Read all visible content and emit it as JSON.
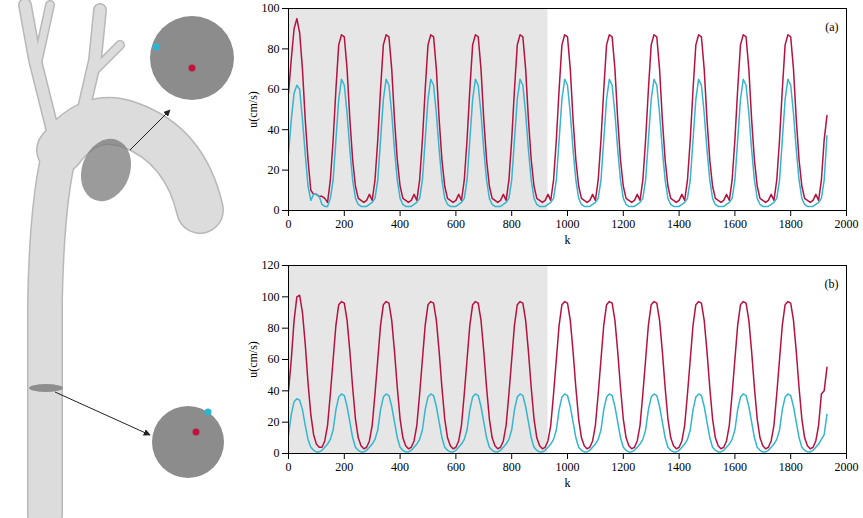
{
  "chart_data": [
    {
      "type": "line",
      "label": "(a)",
      "x_label": "k",
      "y_label": "u(cm/s)",
      "xlim": [
        0,
        2000
      ],
      "xticks": [
        0,
        200,
        400,
        600,
        800,
        1000,
        1200,
        1400,
        1600,
        1800,
        2000
      ],
      "ylim": [
        0,
        100
      ],
      "yticks": [
        0,
        20,
        40,
        60,
        80,
        100
      ],
      "highlight": [
        0,
        930
      ],
      "x": [
        0,
        10,
        20,
        30,
        40,
        50,
        60,
        70,
        80,
        90,
        100,
        110,
        120,
        130,
        140,
        150,
        160,
        170,
        180,
        190,
        200,
        210,
        220,
        230,
        240,
        250,
        260,
        270,
        280,
        290,
        300,
        310,
        320,
        330,
        340,
        350,
        360,
        370,
        380,
        390,
        400,
        410,
        420,
        430,
        440,
        450,
        460,
        470,
        480,
        490,
        500,
        510,
        520,
        530,
        540,
        550,
        560,
        570,
        580,
        590,
        600,
        610,
        620,
        630,
        640,
        650,
        660,
        670,
        680,
        690,
        700,
        710,
        720,
        730,
        740,
        750,
        760,
        770,
        780,
        790,
        800,
        810,
        820,
        830,
        840,
        850,
        860,
        870,
        880,
        890,
        900,
        910,
        920,
        930,
        940,
        950,
        960,
        970,
        980,
        990,
        1000,
        1010,
        1020,
        1030,
        1040,
        1050,
        1060,
        1070,
        1080,
        1090,
        1100,
        1110,
        1120,
        1130,
        1140,
        1150,
        1160,
        1170,
        1180,
        1190,
        1200,
        1210,
        1220,
        1230,
        1240,
        1250,
        1260,
        1270,
        1280,
        1290,
        1300,
        1310,
        1320,
        1330,
        1340,
        1350,
        1360,
        1370,
        1380,
        1390,
        1400,
        1410,
        1420,
        1430,
        1440,
        1450,
        1460,
        1470,
        1480,
        1490,
        1500,
        1510,
        1520,
        1530,
        1540,
        1550,
        1560,
        1570,
        1580,
        1590,
        1600,
        1610,
        1620,
        1630,
        1640,
        1650,
        1660,
        1670,
        1680,
        1690,
        1700,
        1710,
        1720,
        1730,
        1740,
        1750,
        1760,
        1770,
        1780,
        1790,
        1800,
        1810,
        1820,
        1830,
        1840,
        1850,
        1860,
        1870,
        1880,
        1890,
        1900,
        1910,
        1920,
        1930
      ],
      "series": [
        {
          "color": "#b5123f",
          "values": [
            58,
            75,
            90,
            95,
            88,
            70,
            45,
            25,
            10,
            8,
            8,
            7,
            7,
            6,
            4,
            15,
            35,
            60,
            82,
            87,
            86,
            70,
            45,
            25,
            12,
            6,
            5,
            4,
            5,
            8,
            5,
            15,
            35,
            60,
            82,
            87,
            86,
            70,
            45,
            25,
            12,
            6,
            5,
            4,
            5,
            8,
            5,
            15,
            35,
            60,
            82,
            87,
            86,
            70,
            45,
            25,
            12,
            6,
            5,
            4,
            5,
            8,
            5,
            15,
            35,
            60,
            82,
            87,
            86,
            70,
            45,
            25,
            12,
            6,
            5,
            4,
            5,
            8,
            5,
            15,
            35,
            60,
            82,
            87,
            86,
            70,
            45,
            25,
            12,
            6,
            5,
            4,
            5,
            8,
            5,
            15,
            35,
            60,
            82,
            87,
            86,
            70,
            45,
            25,
            12,
            6,
            5,
            4,
            5,
            8,
            5,
            15,
            35,
            60,
            82,
            87,
            86,
            70,
            45,
            25,
            12,
            6,
            5,
            4,
            5,
            8,
            5,
            15,
            35,
            60,
            82,
            87,
            86,
            70,
            45,
            25,
            12,
            6,
            5,
            4,
            5,
            8,
            5,
            15,
            35,
            60,
            82,
            87,
            86,
            70,
            45,
            25,
            12,
            6,
            5,
            4,
            5,
            8,
            5,
            15,
            35,
            60,
            82,
            87,
            86,
            70,
            45,
            25,
            12,
            6,
            5,
            4,
            5,
            8,
            5,
            15,
            35,
            60,
            82,
            87,
            86,
            70,
            45,
            25,
            12,
            6,
            5,
            4,
            5,
            8,
            5,
            15,
            35,
            47
          ]
        },
        {
          "color": "#35b5d0",
          "values": [
            28,
            45,
            58,
            62,
            60,
            45,
            28,
            12,
            5,
            8,
            8,
            7,
            3,
            2,
            2,
            6,
            15,
            35,
            55,
            65,
            62,
            48,
            30,
            15,
            6,
            3,
            2,
            2,
            2,
            3,
            4,
            6,
            15,
            35,
            55,
            65,
            62,
            48,
            30,
            15,
            6,
            3,
            2,
            2,
            2,
            3,
            4,
            6,
            15,
            35,
            55,
            65,
            62,
            48,
            30,
            15,
            6,
            3,
            2,
            2,
            2,
            3,
            4,
            6,
            15,
            35,
            55,
            65,
            62,
            48,
            30,
            15,
            6,
            3,
            2,
            2,
            2,
            3,
            4,
            6,
            15,
            35,
            55,
            65,
            62,
            48,
            30,
            15,
            6,
            3,
            2,
            2,
            2,
            3,
            4,
            6,
            15,
            35,
            55,
            65,
            62,
            48,
            30,
            15,
            6,
            3,
            2,
            2,
            2,
            3,
            4,
            6,
            15,
            35,
            55,
            65,
            62,
            48,
            30,
            15,
            6,
            3,
            2,
            2,
            2,
            3,
            4,
            6,
            15,
            35,
            55,
            65,
            62,
            48,
            30,
            15,
            6,
            3,
            2,
            2,
            2,
            3,
            4,
            6,
            15,
            35,
            55,
            65,
            62,
            48,
            30,
            15,
            6,
            3,
            2,
            2,
            2,
            3,
            4,
            6,
            15,
            35,
            55,
            65,
            62,
            48,
            30,
            15,
            6,
            3,
            2,
            2,
            2,
            3,
            4,
            6,
            15,
            35,
            55,
            65,
            62,
            48,
            30,
            15,
            6,
            3,
            2,
            2,
            2,
            3,
            4,
            6,
            15,
            37
          ]
        }
      ]
    },
    {
      "type": "line",
      "label": "(b)",
      "x_label": "k",
      "y_label": "u(cm/s)",
      "xlim": [
        0,
        2000
      ],
      "xticks": [
        0,
        200,
        400,
        600,
        800,
        1000,
        1200,
        1400,
        1600,
        1800,
        2000
      ],
      "ylim": [
        0,
        120
      ],
      "yticks": [
        0,
        20,
        40,
        60,
        80,
        100,
        120
      ],
      "highlight": [
        0,
        930
      ],
      "x": [
        0,
        10,
        20,
        30,
        40,
        50,
        60,
        70,
        80,
        90,
        100,
        110,
        120,
        130,
        140,
        150,
        160,
        170,
        180,
        190,
        200,
        210,
        220,
        230,
        240,
        250,
        260,
        270,
        280,
        290,
        300,
        310,
        320,
        330,
        340,
        350,
        360,
        370,
        380,
        390,
        400,
        410,
        420,
        430,
        440,
        450,
        460,
        470,
        480,
        490,
        500,
        510,
        520,
        530,
        540,
        550,
        560,
        570,
        580,
        590,
        600,
        610,
        620,
        630,
        640,
        650,
        660,
        670,
        680,
        690,
        700,
        710,
        720,
        730,
        740,
        750,
        760,
        770,
        780,
        790,
        800,
        810,
        820,
        830,
        840,
        850,
        860,
        870,
        880,
        890,
        900,
        910,
        920,
        930,
        940,
        950,
        960,
        970,
        980,
        990,
        1000,
        1010,
        1020,
        1030,
        1040,
        1050,
        1060,
        1070,
        1080,
        1090,
        1100,
        1110,
        1120,
        1130,
        1140,
        1150,
        1160,
        1170,
        1180,
        1190,
        1200,
        1210,
        1220,
        1230,
        1240,
        1250,
        1260,
        1270,
        1280,
        1290,
        1300,
        1310,
        1320,
        1330,
        1340,
        1350,
        1360,
        1370,
        1380,
        1390,
        1400,
        1410,
        1420,
        1430,
        1440,
        1450,
        1460,
        1470,
        1480,
        1490,
        1500,
        1510,
        1520,
        1530,
        1540,
        1550,
        1560,
        1570,
        1580,
        1590,
        1600,
        1610,
        1620,
        1630,
        1640,
        1650,
        1660,
        1670,
        1680,
        1690,
        1700,
        1710,
        1720,
        1730,
        1740,
        1750,
        1760,
        1770,
        1780,
        1790,
        1800,
        1810,
        1820,
        1830,
        1840,
        1850,
        1860,
        1870,
        1880,
        1890,
        1900,
        1910,
        1920,
        1930
      ],
      "series": [
        {
          "color": "#b5123f",
          "values": [
            40,
            60,
            85,
            100,
            101,
            90,
            70,
            45,
            25,
            12,
            6,
            4,
            4,
            8,
            18,
            38,
            60,
            82,
            95,
            97,
            96,
            85,
            65,
            42,
            22,
            10,
            5,
            3,
            4,
            8,
            18,
            38,
            60,
            82,
            95,
            97,
            96,
            85,
            65,
            42,
            22,
            10,
            5,
            3,
            4,
            8,
            18,
            38,
            60,
            82,
            95,
            97,
            96,
            85,
            65,
            42,
            22,
            10,
            5,
            3,
            4,
            8,
            18,
            38,
            60,
            82,
            95,
            97,
            96,
            85,
            65,
            42,
            22,
            10,
            5,
            3,
            4,
            8,
            18,
            38,
            60,
            82,
            95,
            97,
            96,
            85,
            65,
            42,
            22,
            10,
            5,
            3,
            4,
            8,
            18,
            38,
            60,
            82,
            95,
            97,
            96,
            85,
            65,
            42,
            22,
            10,
            5,
            3,
            4,
            8,
            18,
            38,
            60,
            82,
            95,
            97,
            96,
            85,
            65,
            42,
            22,
            10,
            5,
            3,
            4,
            8,
            18,
            38,
            60,
            82,
            95,
            97,
            96,
            85,
            65,
            42,
            22,
            10,
            5,
            3,
            4,
            8,
            18,
            38,
            60,
            82,
            95,
            97,
            96,
            85,
            65,
            42,
            22,
            10,
            5,
            3,
            4,
            8,
            18,
            38,
            60,
            82,
            95,
            97,
            96,
            85,
            65,
            42,
            22,
            10,
            5,
            3,
            4,
            8,
            18,
            38,
            60,
            82,
            95,
            97,
            96,
            85,
            65,
            42,
            22,
            10,
            5,
            3,
            4,
            8,
            18,
            38,
            40,
            55
          ]
        },
        {
          "color": "#35b5d0",
          "values": [
            12,
            25,
            33,
            35,
            34,
            28,
            18,
            9,
            4,
            2,
            1,
            1,
            2,
            4,
            6,
            9,
            15,
            28,
            36,
            38,
            37,
            30,
            20,
            10,
            4,
            2,
            1,
            1,
            2,
            4,
            6,
            9,
            15,
            28,
            36,
            38,
            37,
            30,
            20,
            10,
            4,
            2,
            1,
            1,
            2,
            4,
            6,
            9,
            15,
            28,
            36,
            38,
            37,
            30,
            20,
            10,
            4,
            2,
            1,
            1,
            2,
            4,
            6,
            9,
            15,
            28,
            36,
            38,
            37,
            30,
            20,
            10,
            4,
            2,
            1,
            1,
            2,
            4,
            6,
            9,
            15,
            28,
            36,
            38,
            37,
            30,
            20,
            10,
            4,
            2,
            1,
            1,
            2,
            4,
            6,
            9,
            15,
            28,
            36,
            38,
            37,
            30,
            20,
            10,
            4,
            2,
            1,
            1,
            2,
            4,
            6,
            9,
            15,
            28,
            36,
            38,
            37,
            30,
            20,
            10,
            4,
            2,
            1,
            1,
            2,
            4,
            6,
            9,
            15,
            28,
            36,
            38,
            37,
            30,
            20,
            10,
            4,
            2,
            1,
            1,
            2,
            4,
            6,
            9,
            15,
            28,
            36,
            38,
            37,
            30,
            20,
            10,
            4,
            2,
            1,
            1,
            2,
            4,
            6,
            9,
            15,
            28,
            36,
            38,
            37,
            30,
            20,
            10,
            4,
            2,
            1,
            1,
            2,
            4,
            6,
            9,
            15,
            28,
            36,
            38,
            37,
            30,
            20,
            10,
            4,
            2,
            1,
            1,
            2,
            4,
            6,
            9,
            12,
            25
          ]
        }
      ]
    }
  ]
}
